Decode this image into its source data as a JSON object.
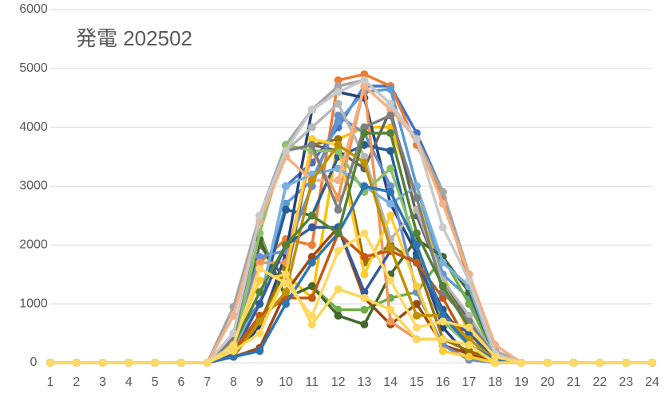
{
  "chart_data": {
    "type": "line",
    "title": "発電 202502",
    "categories": [
      1,
      2,
      3,
      4,
      5,
      6,
      7,
      8,
      9,
      10,
      11,
      12,
      13,
      14,
      15,
      16,
      17,
      18,
      19,
      20,
      21,
      22,
      23,
      24
    ],
    "ylim": [
      0,
      6000
    ],
    "yticks": [
      0,
      1000,
      2000,
      3000,
      4000,
      5000,
      6000
    ],
    "grid": true,
    "series": [
      {
        "color": "#4472c4",
        "values": [
          0,
          0,
          0,
          0,
          0,
          0,
          0,
          450,
          1000,
          3000,
          3400,
          4000,
          4700,
          4700,
          3900,
          2900,
          1500,
          200,
          0,
          0,
          0,
          0,
          0,
          0
        ]
      },
      {
        "color": "#ed7d31",
        "values": [
          0,
          0,
          0,
          0,
          0,
          0,
          0,
          400,
          1700,
          2100,
          2000,
          4800,
          4900,
          4700,
          3700,
          2800,
          1400,
          150,
          0,
          0,
          0,
          0,
          0,
          0
        ]
      },
      {
        "color": "#a5a5a5",
        "values": [
          0,
          0,
          0,
          0,
          0,
          0,
          0,
          950,
          2500,
          3700,
          4300,
          4700,
          4800,
          4400,
          3800,
          2900,
          1500,
          200,
          0,
          0,
          0,
          0,
          0,
          0
        ]
      },
      {
        "color": "#ffc000",
        "values": [
          0,
          0,
          0,
          0,
          0,
          0,
          0,
          300,
          700,
          1500,
          1100,
          3800,
          4000,
          4000,
          2800,
          1500,
          500,
          100,
          0,
          0,
          0,
          0,
          0,
          0
        ]
      },
      {
        "color": "#5b9bd5",
        "values": [
          0,
          0,
          0,
          0,
          0,
          0,
          0,
          500,
          1000,
          2700,
          3100,
          4100,
          4600,
          4650,
          3000,
          1500,
          1100,
          150,
          0,
          0,
          0,
          0,
          0,
          0
        ]
      },
      {
        "color": "#70ad47",
        "values": [
          0,
          0,
          0,
          0,
          0,
          0,
          0,
          200,
          2200,
          1100,
          1300,
          900,
          900,
          1100,
          1200,
          1800,
          1000,
          100,
          0,
          0,
          0,
          0,
          0,
          0
        ]
      },
      {
        "color": "#264478",
        "values": [
          0,
          0,
          0,
          0,
          0,
          0,
          0,
          150,
          600,
          1850,
          4300,
          4600,
          4500,
          2700,
          1850,
          600,
          100,
          0,
          0,
          0,
          0,
          0,
          0,
          0
        ]
      },
      {
        "color": "#9e480e",
        "values": [
          0,
          0,
          0,
          0,
          0,
          0,
          0,
          100,
          250,
          1200,
          1800,
          2300,
          1100,
          650,
          1000,
          300,
          150,
          0,
          0,
          0,
          0,
          0,
          0,
          0
        ]
      },
      {
        "color": "#636363",
        "values": [
          0,
          0,
          0,
          0,
          0,
          0,
          0,
          300,
          2000,
          1400,
          3700,
          3600,
          3300,
          4300,
          2500,
          1400,
          700,
          100,
          0,
          0,
          0,
          0,
          0,
          0
        ]
      },
      {
        "color": "#997300",
        "values": [
          0,
          0,
          0,
          0,
          0,
          0,
          0,
          200,
          700,
          1600,
          3700,
          3800,
          1700,
          2000,
          1700,
          400,
          200,
          50,
          0,
          0,
          0,
          0,
          0,
          0
        ]
      },
      {
        "color": "#255e91",
        "values": [
          0,
          0,
          0,
          0,
          0,
          0,
          0,
          350,
          1000,
          2600,
          2500,
          3500,
          3700,
          3600,
          1800,
          900,
          300,
          50,
          0,
          0,
          0,
          0,
          0,
          0
        ]
      },
      {
        "color": "#43682b",
        "values": [
          0,
          0,
          0,
          0,
          0,
          0,
          0,
          200,
          2100,
          1100,
          1300,
          800,
          650,
          1500,
          2100,
          1800,
          1200,
          100,
          0,
          0,
          0,
          0,
          0,
          0
        ]
      },
      {
        "color": "#698ed0",
        "values": [
          0,
          0,
          0,
          0,
          0,
          0,
          0,
          400,
          1800,
          1900,
          3000,
          4200,
          3900,
          3000,
          1200,
          300,
          50,
          0,
          0,
          0,
          0,
          0,
          0,
          0
        ]
      },
      {
        "color": "#f1975a",
        "values": [
          0,
          0,
          0,
          0,
          0,
          0,
          0,
          150,
          1700,
          1700,
          3600,
          2800,
          4700,
          700,
          400,
          400,
          300,
          50,
          0,
          0,
          0,
          0,
          0,
          0
        ]
      },
      {
        "color": "#b7b7b7",
        "values": [
          0,
          0,
          0,
          0,
          0,
          0,
          0,
          300,
          2500,
          3600,
          4000,
          4400,
          3500,
          2100,
          2600,
          1400,
          800,
          100,
          0,
          0,
          0,
          0,
          0,
          0
        ]
      },
      {
        "color": "#ffcd33",
        "values": [
          0,
          0,
          0,
          0,
          0,
          0,
          0,
          350,
          1400,
          1500,
          3800,
          3700,
          1500,
          2500,
          1300,
          200,
          100,
          0,
          0,
          0,
          0,
          0,
          0,
          0
        ]
      },
      {
        "color": "#7cafdd",
        "values": [
          0,
          0,
          0,
          0,
          0,
          0,
          0,
          300,
          1000,
          3000,
          3200,
          3300,
          3000,
          2700,
          3000,
          1700,
          1300,
          100,
          0,
          0,
          0,
          0,
          0,
          0
        ]
      },
      {
        "color": "#8cc168",
        "values": [
          0,
          0,
          0,
          0,
          0,
          0,
          0,
          200,
          2200,
          3700,
          3600,
          3600,
          2900,
          3300,
          2000,
          700,
          300,
          50,
          0,
          0,
          0,
          0,
          0,
          0
        ]
      },
      {
        "color": "#335aa1",
        "values": [
          0,
          0,
          0,
          0,
          0,
          0,
          0,
          150,
          1000,
          2000,
          2300,
          2300,
          1200,
          1900,
          1700,
          800,
          500,
          50,
          0,
          0,
          0,
          0,
          0,
          0
        ]
      },
      {
        "color": "#f4b183",
        "values": [
          0,
          0,
          0,
          0,
          0,
          0,
          0,
          800,
          2400,
          3500,
          3100,
          3100,
          4700,
          4300,
          3800,
          2700,
          1500,
          300,
          0,
          0,
          0,
          0,
          0,
          0
        ]
      },
      {
        "color": "#c55a11",
        "values": [
          0,
          0,
          0,
          0,
          0,
          0,
          0,
          200,
          800,
          1100,
          1100,
          2200,
          1800,
          1900,
          1700,
          1100,
          300,
          50,
          0,
          0,
          0,
          0,
          0,
          0
        ]
      },
      {
        "color": "#7f7f7f",
        "values": [
          0,
          0,
          0,
          0,
          0,
          0,
          0,
          400,
          2500,
          3600,
          3700,
          2600,
          4000,
          4200,
          2800,
          1200,
          700,
          100,
          0,
          0,
          0,
          0,
          0,
          0
        ]
      },
      {
        "color": "#bf9000",
        "values": [
          0,
          0,
          0,
          0,
          0,
          0,
          0,
          100,
          700,
          1200,
          3100,
          3700,
          3400,
          1950,
          800,
          800,
          400,
          50,
          0,
          0,
          0,
          0,
          0,
          0
        ]
      },
      {
        "color": "#2e75b6",
        "values": [
          0,
          0,
          0,
          0,
          0,
          0,
          0,
          100,
          200,
          1000,
          1700,
          2200,
          3000,
          2900,
          2000,
          800,
          300,
          50,
          0,
          0,
          0,
          0,
          0,
          0
        ]
      },
      {
        "color": "#548235",
        "values": [
          0,
          0,
          0,
          0,
          0,
          0,
          0,
          300,
          1200,
          2000,
          2500,
          2200,
          3900,
          3900,
          2200,
          1300,
          600,
          100,
          0,
          0,
          0,
          0,
          0,
          0
        ]
      },
      {
        "color": "#c9c9c9",
        "values": [
          0,
          0,
          0,
          0,
          0,
          0,
          0,
          500,
          2500,
          3600,
          4300,
          4600,
          4800,
          4400,
          3800,
          2300,
          1400,
          150,
          0,
          0,
          0,
          0,
          0,
          0
        ]
      },
      {
        "color": "#fbd75b",
        "values": [
          0,
          0,
          0,
          0,
          0,
          0,
          0,
          200,
          500,
          1500,
          650,
          1250,
          1100,
          900,
          400,
          400,
          300,
          0,
          0,
          0,
          0,
          0,
          0,
          0
        ]
      },
      {
        "color": "#ffd966",
        "values": [
          0,
          0,
          0,
          0,
          0,
          0,
          0,
          300,
          1600,
          1350,
          800,
          1900,
          2200,
          1400,
          600,
          700,
          600,
          100,
          0,
          0,
          0,
          0,
          0,
          0
        ]
      }
    ]
  }
}
